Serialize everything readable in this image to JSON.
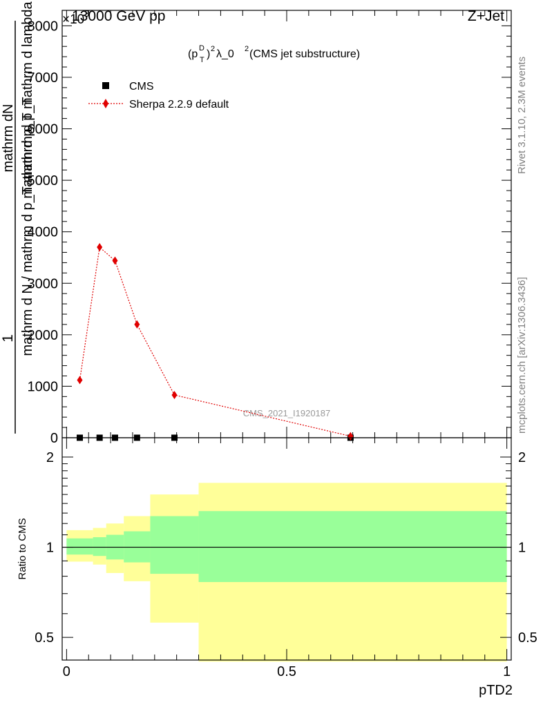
{
  "header": {
    "left_label": "13000 GeV pp",
    "right_label": "Z+Jet",
    "exponent_label": "×10",
    "exponent_power": "3"
  },
  "side_labels": {
    "rivet": "Rivet 3.1.10,  2.3M events",
    "mcplots": "mcplots.cern.ch [arXiv:1306.3436]"
  },
  "chart_data": [
    {
      "type": "scatter",
      "title_parts": {
        "p": "(p",
        "sub": "T",
        "sup": "D",
        "pow": "2",
        "rest": " λ_0",
        "pow2": "2",
        "tail": " (CMS jet substructure)"
      },
      "ylabel_numerator": "mathrm dN",
      "ylabel_numerator_1": "1",
      "ylabel_line_a": "mathrm d p_T mathrm d lambda",
      "ylabel_line_b": "mathrm d N / mathrm d p_T mathrm d p_T",
      "ylabel_line_c": "mathrm d N",
      "yticks": [
        0,
        1000,
        2000,
        3000,
        4000,
        5000,
        6000,
        7000,
        8000
      ],
      "ytick_labels": [
        "0",
        "1000",
        "2000",
        "3000",
        "4000",
        "5000",
        "6000",
        "7000",
        "8000"
      ],
      "ylim": [
        0,
        8300
      ],
      "xlim": [
        -0.01,
        1.01
      ],
      "watermark": "CMS_2021_I1920187",
      "legend": {
        "placement": "top-left",
        "entries": [
          "CMS",
          "Sherpa 2.2.9 default"
        ]
      },
      "series": [
        {
          "name": "CMS",
          "marker": "square",
          "color": "#000000",
          "x": [
            0.03,
            0.075,
            0.11,
            0.16,
            0.245,
            0.645
          ],
          "y": [
            0,
            0,
            0,
            0,
            0,
            0
          ]
        },
        {
          "name": "Sherpa 2.2.9 default",
          "marker": "diamond",
          "color": "#e00000",
          "line": "dotted",
          "x": [
            0.03,
            0.075,
            0.11,
            0.16,
            0.245,
            0.645
          ],
          "y": [
            1120,
            3700,
            3440,
            2200,
            830,
            30
          ]
        }
      ]
    },
    {
      "type": "area",
      "ylabel": "Ratio to CMS",
      "xlabel": "pTD2",
      "ylim": [
        0.42,
        2.32
      ],
      "log_y": true,
      "yticks": [
        0.5,
        1,
        2
      ],
      "ytick_labels": [
        "0.5",
        "1",
        "2"
      ],
      "xticks": [
        0,
        0.5,
        1
      ],
      "xtick_labels": [
        "0",
        "0.5",
        "1"
      ],
      "reference_line": 1,
      "bins": [
        {
          "x0": 0.0,
          "x1": 0.06,
          "green": [
            0.945,
            1.07
          ],
          "yellow": [
            0.895,
            1.14
          ]
        },
        {
          "x0": 0.06,
          "x1": 0.09,
          "green": [
            0.935,
            1.08
          ],
          "yellow": [
            0.875,
            1.16
          ]
        },
        {
          "x0": 0.09,
          "x1": 0.13,
          "green": [
            0.91,
            1.1
          ],
          "yellow": [
            0.82,
            1.2
          ]
        },
        {
          "x0": 0.13,
          "x1": 0.19,
          "green": [
            0.89,
            1.13
          ],
          "yellow": [
            0.77,
            1.27
          ]
        },
        {
          "x0": 0.19,
          "x1": 0.3,
          "green": [
            0.815,
            1.27
          ],
          "yellow": [
            0.56,
            1.5
          ]
        },
        {
          "x0": 0.3,
          "x1": 1.0,
          "green": [
            0.765,
            1.32
          ],
          "yellow": [
            0.415,
            1.64
          ]
        }
      ],
      "colors": {
        "green": "#99ff99",
        "yellow": "#ffff99"
      }
    }
  ]
}
